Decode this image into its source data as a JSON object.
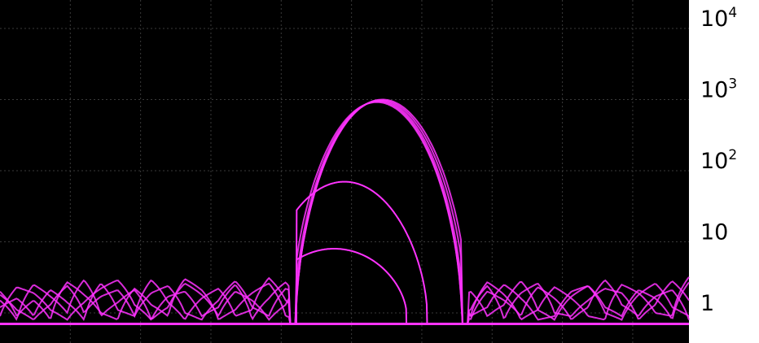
{
  "chart_data": {
    "type": "line",
    "title": "",
    "xlabel": "",
    "ylabel": "",
    "y_scale": "log",
    "ylim": [
      0.5,
      20000
    ],
    "y_ticks": [
      {
        "base": "1",
        "exp": ""
      },
      {
        "base": "10",
        "exp": ""
      },
      {
        "base": "10",
        "exp": "2"
      },
      {
        "base": "10",
        "exp": "3"
      },
      {
        "base": "10",
        "exp": "4"
      }
    ],
    "y_tick_values": [
      1,
      10,
      100,
      1000,
      10000
    ],
    "grid": true,
    "background": "#000000",
    "trace_color": "#ff33ff",
    "grid_color": "#3a3a3a",
    "noise_floor": 0.7,
    "main_peak": {
      "center_fraction": 0.551,
      "width_fraction": 0.108,
      "peak_value": 1000,
      "start_fraction": 0.43,
      "end_fraction": 0.67
    },
    "series": [
      {
        "values": [
          1.2,
          1.6,
          0.9,
          2.1,
          1.4,
          0.8,
          2.6,
          1.1,
          0.9,
          1.9,
          2.4,
          1.0,
          0.8,
          1.5,
          2.8,
          1.2,
          0.9,
          2.2,
          1.7,
          0.8,
          1.3,
          2.5,
          3.1,
          1.4,
          0.9,
          1.8,
          2.7,
          1.1,
          0.8,
          2.0,
          1.5,
          0.9,
          2.3,
          1.6,
          0.8,
          1.2,
          2.9,
          1.3,
          0.9,
          1.7,
          2.1,
          0.8
        ]
      },
      {
        "values": [
          2.0,
          0.9,
          1.5,
          0.8,
          2.7,
          1.8,
          1.0,
          0.8,
          2.2,
          1.3,
          0.9,
          3.0,
          2.1,
          0.8,
          1.1,
          1.9,
          2.6,
          0.9,
          0.8,
          1.6,
          2.3,
          1.0,
          0.9,
          2.8,
          1.7,
          0.8,
          1.4,
          2.1,
          0.9,
          1.2,
          2.5,
          1.6,
          0.8,
          0.9,
          2.0,
          2.4,
          1.0,
          0.8,
          1.8,
          2.6,
          1.2,
          0.9
        ]
      },
      {
        "values": [
          0.9,
          2.3,
          1.9,
          1.1,
          0.8,
          1.4,
          2.2,
          2.9,
          1.3,
          0.8,
          1.7,
          2.0,
          0.9,
          1.2,
          2.5,
          0.8,
          1.6,
          2.7,
          1.0,
          2.2,
          0.9,
          1.5,
          2.1,
          0.8,
          1.3,
          2.9,
          2.0,
          0.9,
          1.1,
          2.4,
          0.8,
          1.9,
          2.6,
          1.0,
          0.9,
          1.5,
          2.2,
          1.9,
          0.8,
          1.3,
          2.8,
          1.5
        ]
      },
      {
        "values": [
          1.5,
          0.8,
          2.5,
          1.7,
          1.0,
          2.9,
          0.9,
          1.4,
          2.1,
          0.8,
          1.2,
          2.6,
          1.8,
          0.9,
          2.0,
          1.5,
          0.8,
          1.3,
          2.8,
          1.1,
          0.9,
          1.9,
          2.4,
          1.7,
          0.8,
          1.0,
          2.2,
          1.4,
          0.9,
          2.7,
          1.8,
          0.8,
          1.1,
          2.3,
          1.6,
          0.9,
          0.8,
          2.5,
          1.9,
          1.0,
          0.9,
          3.2
        ]
      },
      {
        "values": [
          1.8,
          1.1,
          0.8,
          1.3,
          2.4,
          1.0,
          1.7,
          2.1,
          0.9,
          2.9,
          1.4,
          0.8,
          1.6,
          2.2,
          0.9,
          1.1,
          3.1,
          1.5,
          0.8,
          1.9,
          1.2,
          0.9,
          2.6,
          1.0,
          1.8,
          2.3,
          0.8,
          1.4,
          2.0,
          0.9,
          1.3,
          2.8,
          1.1,
          0.8,
          1.7,
          2.4,
          1.2,
          0.9,
          2.1,
          1.6,
          0.8,
          2.7
        ]
      }
    ],
    "weak_peaks": [
      {
        "center_fraction": 0.5,
        "peak_value": 70,
        "start_fraction": 0.43,
        "end_fraction": 0.62
      },
      {
        "center_fraction": 0.485,
        "peak_value": 8,
        "start_fraction": 0.43,
        "end_fraction": 0.59
      }
    ]
  }
}
